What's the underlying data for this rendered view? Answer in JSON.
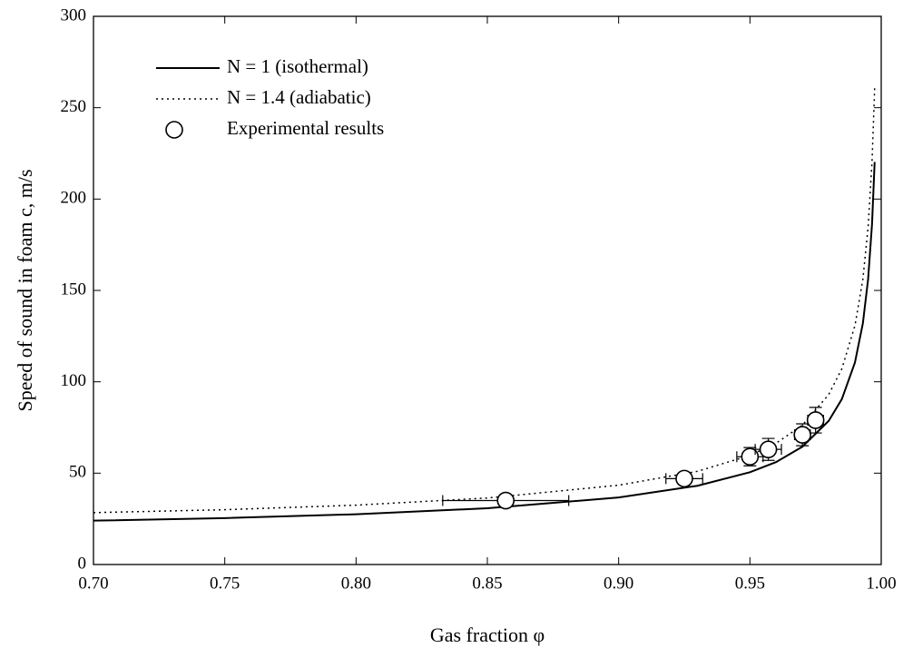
{
  "chart_data": {
    "type": "line",
    "x_label": "Gas fraction φ",
    "y_label": "Speed of sound in foam  c, m/s",
    "xlim": [
      0.7,
      1.0
    ],
    "xticks": [
      {
        "value": 0.7,
        "label": "0.70"
      },
      {
        "value": 0.75,
        "label": "0.75"
      },
      {
        "value": 0.8,
        "label": "0.80"
      },
      {
        "value": 0.85,
        "label": "0.85"
      },
      {
        "value": 0.9,
        "label": "0.90"
      },
      {
        "value": 0.95,
        "label": "0.95"
      },
      {
        "value": 1.0,
        "label": "1.00"
      }
    ],
    "ylim": [
      0,
      300
    ],
    "yticks": [
      0,
      50,
      100,
      150,
      200,
      250,
      300
    ],
    "legend": "upper left",
    "series": [
      {
        "name": "N = 1 (isothermal)",
        "type": "line",
        "style": "solid",
        "color": "#000000",
        "x": [
          0.7,
          0.75,
          0.8,
          0.85,
          0.9,
          0.93,
          0.95,
          0.96,
          0.97,
          0.98,
          0.985,
          0.99,
          0.993,
          0.995,
          0.9965,
          0.9975
        ],
        "values": [
          24.0,
          25.4,
          27.5,
          30.8,
          36.7,
          43.1,
          50.5,
          56.1,
          64.5,
          78.6,
          90.5,
          110.6,
          131.9,
          156.0,
          186.3,
          220.3
        ]
      },
      {
        "name": "N = 1.4 (adiabatic)",
        "type": "line",
        "style": "dotted",
        "color": "#000000",
        "x": [
          0.7,
          0.75,
          0.8,
          0.85,
          0.9,
          0.93,
          0.95,
          0.96,
          0.97,
          0.98,
          0.985,
          0.99,
          0.993,
          0.995,
          0.9965,
          0.9975
        ],
        "values": [
          28.4,
          30.0,
          32.5,
          36.4,
          43.4,
          51.0,
          59.7,
          66.4,
          76.3,
          93.0,
          107.1,
          130.8,
          156.0,
          184.5,
          220.4,
          260.6
        ]
      },
      {
        "name": "Experimental results",
        "type": "scatter",
        "color": "#000000",
        "x": [
          0.857,
          0.925,
          0.95,
          0.957,
          0.97,
          0.975
        ],
        "values": [
          35,
          47,
          59,
          63,
          71,
          79
        ],
        "xerr": [
          0.024,
          0.007,
          0.005,
          0.005,
          0.003,
          0.003
        ],
        "yerr": [
          1,
          3,
          5,
          6,
          6,
          7
        ]
      }
    ]
  }
}
